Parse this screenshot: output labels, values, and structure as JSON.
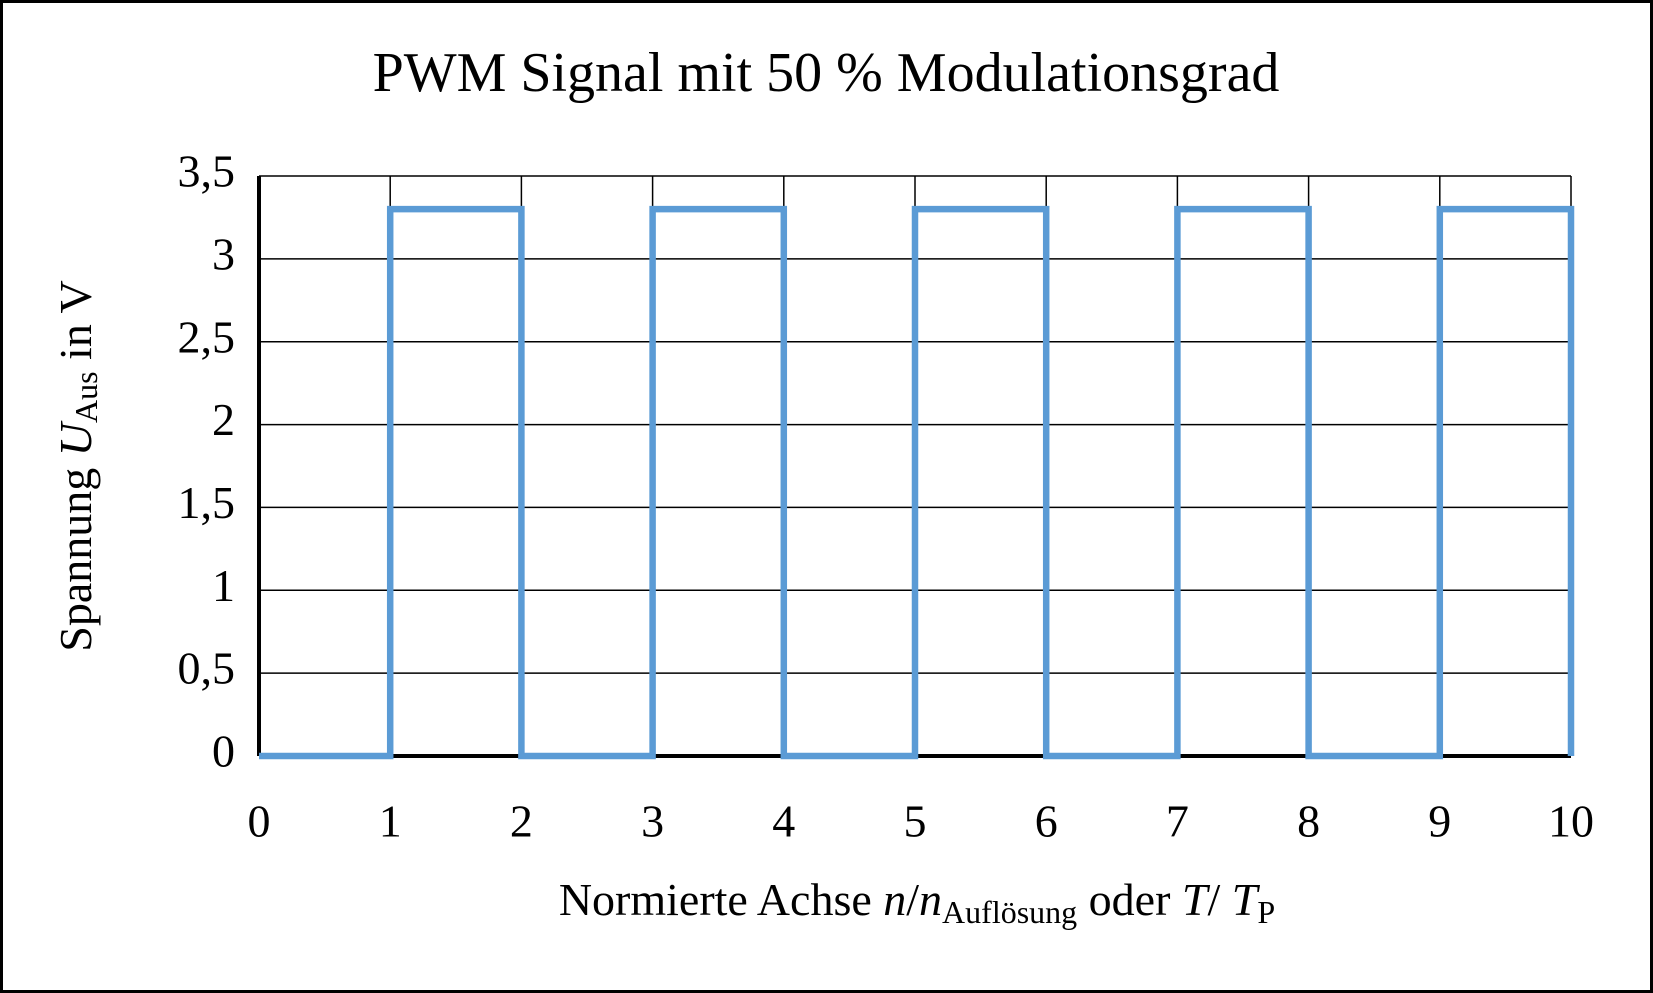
{
  "chart_data": {
    "type": "line",
    "title": "PWM Signal mit 50 % Modulationsgrad",
    "y_label": [
      "Spannung ",
      "U",
      "Aus",
      " in V"
    ],
    "x_label": [
      "Normierte Achse ",
      "n",
      "/",
      "n",
      "Auflösung",
      " oder ",
      "T",
      "/ ",
      "T",
      "P"
    ],
    "x": [
      0,
      1,
      1,
      2,
      2,
      3,
      3,
      4,
      4,
      5,
      5,
      6,
      6,
      7,
      7,
      8,
      8,
      9,
      9,
      10,
      10
    ],
    "values": [
      0,
      0,
      3.3,
      3.3,
      0,
      0,
      3.3,
      3.3,
      0,
      0,
      3.3,
      3.3,
      0,
      0,
      3.3,
      3.3,
      0,
      0,
      3.3,
      3.3,
      0
    ],
    "color": "#5b9bd5",
    "xlim": [
      0,
      10
    ],
    "xticks": [
      0,
      1,
      2,
      3,
      4,
      5,
      6,
      7,
      8,
      9,
      10
    ],
    "ylim": [
      0,
      3.5
    ],
    "yticks": [
      0,
      {
        "value": 0.5,
        "label": "0,5"
      },
      1,
      {
        "value": 1.5,
        "label": "1,5"
      },
      2,
      {
        "value": 2.5,
        "label": "2,5"
      },
      3,
      {
        "value": 3.5,
        "label": "3,5"
      }
    ],
    "grid": true
  }
}
